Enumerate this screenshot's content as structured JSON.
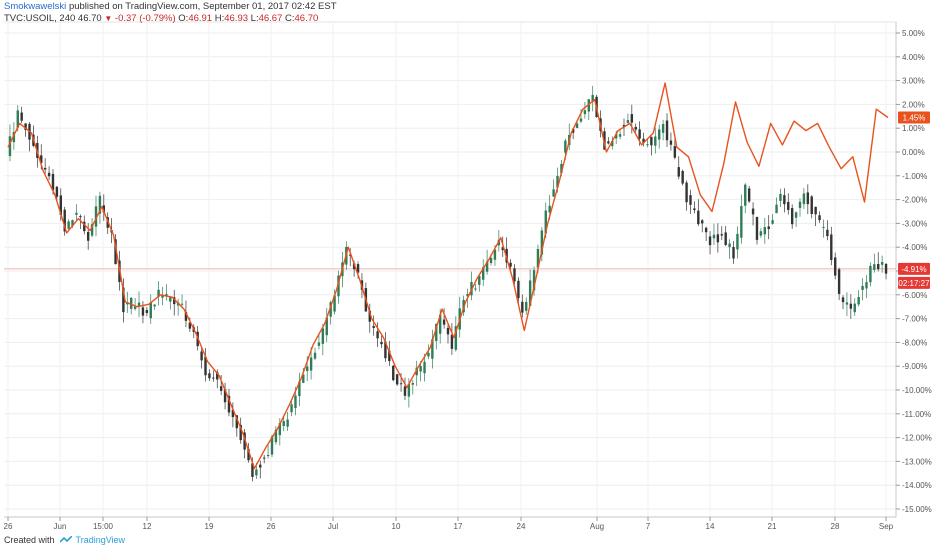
{
  "header": {
    "author": "Smokwawelski",
    "published_text": "published on TradingView.com, September 01, 2017 02:42 EST",
    "symbol": "TVC:USOIL, 240",
    "last": "46.70",
    "change": "-0.37 (-0.79%)",
    "o_label": "O:",
    "o_value": "46.91",
    "h_label": "H:",
    "h_value": "46.93",
    "l_label": "L:",
    "l_value": "46.67",
    "c_label": "C:",
    "c_value": "46.70"
  },
  "footer": {
    "created_with": "Created with",
    "brand": "TradingView"
  },
  "colors": {
    "up_candle": "#2e7d57",
    "down_candle": "#333333",
    "compare_line": "#e8521e",
    "price_line": "#ef9a9a",
    "badge_compare": "#e8521e",
    "badge_price": "#e53935"
  },
  "chart_data": {
    "type": "line",
    "title": "",
    "xlabel": "",
    "ylabel": "",
    "y_unit": "%",
    "ylim": [
      -15.5,
      5.5
    ],
    "x_ticks": [
      "26",
      "Jun",
      "15:00",
      "12",
      "19",
      "26",
      "Jul",
      "10",
      "17",
      "24",
      "Aug",
      "7",
      "14",
      "21",
      "28",
      "Sep"
    ],
    "y_ticks": [
      "5.00%",
      "4.00%",
      "3.00%",
      "2.00%",
      "1.00%",
      "0.00%",
      "-1.00%",
      "-2.00%",
      "-3.00%",
      "-4.00%",
      "-5.00%",
      "-6.00%",
      "-7.00%",
      "-8.00%",
      "-9.00%",
      "-10.00%",
      "-11.00%",
      "-12.00%",
      "-13.00%",
      "-14.00%",
      "-15.00%"
    ],
    "y_tick_values": [
      5,
      4,
      3,
      2,
      1,
      0,
      -1,
      -2,
      -3,
      -4,
      -5,
      -6,
      -7,
      -8,
      -9,
      -10,
      -11,
      -12,
      -13,
      -14,
      -15
    ],
    "badges": [
      {
        "label": "1.45%",
        "value": 1.45,
        "kind": "compare"
      },
      {
        "label": "-4.91%",
        "value": -4.91,
        "kind": "price"
      },
      {
        "label": "02:17:27",
        "value": -5.5,
        "kind": "price"
      }
    ],
    "price_line_value": -4.91,
    "grid": true,
    "series": [
      {
        "kind": "candles",
        "symbol": "TVC:USOIL",
        "points": [
          [
            0,
            0.0
          ],
          [
            2,
            1.5
          ],
          [
            4,
            0.7
          ],
          [
            6,
            -0.5
          ],
          [
            8,
            -1.5
          ],
          [
            10,
            -3.2
          ],
          [
            12,
            -2.5
          ],
          [
            14,
            -3.5
          ],
          [
            16,
            -2.0
          ],
          [
            18,
            -3.6
          ],
          [
            20,
            -6.5
          ],
          [
            22,
            -6.3
          ],
          [
            24,
            -6.8
          ],
          [
            26,
            -5.9
          ],
          [
            28,
            -6.3
          ],
          [
            30,
            -6.5
          ],
          [
            32,
            -7.8
          ],
          [
            34,
            -9.2
          ],
          [
            36,
            -9.6
          ],
          [
            38,
            -10.8
          ],
          [
            40,
            -12.0
          ],
          [
            42,
            -13.6
          ],
          [
            44,
            -12.8
          ],
          [
            46,
            -11.9
          ],
          [
            48,
            -11.0
          ],
          [
            50,
            -9.8
          ],
          [
            52,
            -8.5
          ],
          [
            54,
            -7.6
          ],
          [
            56,
            -6.0
          ],
          [
            58,
            -4.2
          ],
          [
            60,
            -5.2
          ],
          [
            62,
            -7.3
          ],
          [
            64,
            -8.0
          ],
          [
            66,
            -9.4
          ],
          [
            68,
            -10.2
          ],
          [
            70,
            -9.3
          ],
          [
            72,
            -8.6
          ],
          [
            74,
            -6.8
          ],
          [
            76,
            -8.2
          ],
          [
            78,
            -6.0
          ],
          [
            80,
            -5.5
          ],
          [
            82,
            -4.7
          ],
          [
            84,
            -3.9
          ],
          [
            86,
            -5.0
          ],
          [
            88,
            -6.9
          ],
          [
            90,
            -5.0
          ],
          [
            92,
            -2.7
          ],
          [
            94,
            -0.8
          ],
          [
            96,
            0.8
          ],
          [
            98,
            1.5
          ],
          [
            100,
            2.2
          ],
          [
            102,
            0.3
          ],
          [
            104,
            0.7
          ],
          [
            106,
            1.4
          ],
          [
            108,
            0.4
          ],
          [
            110,
            0.4
          ],
          [
            112,
            1.2
          ],
          [
            114,
            -0.4
          ],
          [
            116,
            -2.0
          ],
          [
            118,
            -2.8
          ],
          [
            120,
            -3.8
          ],
          [
            122,
            -3.5
          ],
          [
            124,
            -4.3
          ],
          [
            126,
            -1.5
          ],
          [
            128,
            -3.5
          ],
          [
            130,
            -3.0
          ],
          [
            132,
            -1.9
          ],
          [
            134,
            -2.8
          ],
          [
            136,
            -1.7
          ],
          [
            138,
            -2.8
          ],
          [
            140,
            -3.5
          ],
          [
            142,
            -6.0
          ],
          [
            144,
            -6.8
          ],
          [
            146,
            -5.6
          ],
          [
            148,
            -4.6
          ],
          [
            150,
            -4.9
          ]
        ]
      },
      {
        "kind": "line",
        "symbol": "compare",
        "points": [
          [
            0,
            0.2
          ],
          [
            2,
            1.2
          ],
          [
            4,
            0.8
          ],
          [
            6,
            -0.8
          ],
          [
            8,
            -1.8
          ],
          [
            10,
            -3.4
          ],
          [
            12,
            -2.8
          ],
          [
            14,
            -3.3
          ],
          [
            16,
            -2.3
          ],
          [
            18,
            -3.5
          ],
          [
            20,
            -6.3
          ],
          [
            22,
            -6.5
          ],
          [
            24,
            -6.4
          ],
          [
            26,
            -6.0
          ],
          [
            28,
            -6.1
          ],
          [
            30,
            -6.6
          ],
          [
            32,
            -7.6
          ],
          [
            34,
            -8.8
          ],
          [
            36,
            -9.4
          ],
          [
            38,
            -10.6
          ],
          [
            40,
            -11.8
          ],
          [
            42,
            -13.3
          ],
          [
            44,
            -12.4
          ],
          [
            46,
            -11.6
          ],
          [
            48,
            -10.6
          ],
          [
            50,
            -9.5
          ],
          [
            52,
            -8.1
          ],
          [
            54,
            -7.2
          ],
          [
            56,
            -5.8
          ],
          [
            58,
            -4.0
          ],
          [
            60,
            -5.4
          ],
          [
            62,
            -7.0
          ],
          [
            64,
            -7.8
          ],
          [
            66,
            -9.0
          ],
          [
            68,
            -9.9
          ],
          [
            70,
            -9.0
          ],
          [
            72,
            -8.2
          ],
          [
            74,
            -6.6
          ],
          [
            76,
            -7.8
          ],
          [
            78,
            -6.3
          ],
          [
            80,
            -5.3
          ],
          [
            82,
            -4.5
          ],
          [
            84,
            -3.6
          ],
          [
            86,
            -5.3
          ],
          [
            88,
            -7.5
          ],
          [
            90,
            -5.3
          ],
          [
            92,
            -3.0
          ],
          [
            94,
            -1.2
          ],
          [
            96,
            0.8
          ],
          [
            98,
            1.8
          ],
          [
            100,
            2.2
          ],
          [
            102,
            0.0
          ],
          [
            104,
            0.9
          ],
          [
            106,
            1.2
          ],
          [
            108,
            0.3
          ],
          [
            110,
            0.8
          ],
          [
            112,
            2.9
          ],
          [
            114,
            0.2
          ],
          [
            116,
            -0.2
          ],
          [
            118,
            -1.8
          ],
          [
            120,
            -2.5
          ],
          [
            122,
            -0.5
          ],
          [
            124,
            2.1
          ],
          [
            126,
            0.4
          ],
          [
            128,
            -0.6
          ],
          [
            130,
            1.2
          ],
          [
            132,
            0.3
          ],
          [
            134,
            1.3
          ],
          [
            136,
            0.9
          ],
          [
            138,
            1.2
          ],
          [
            140,
            0.2
          ],
          [
            142,
            -0.7
          ],
          [
            144,
            -0.2
          ],
          [
            146,
            -2.1
          ],
          [
            148,
            1.8
          ],
          [
            150,
            1.45
          ]
        ]
      }
    ]
  }
}
